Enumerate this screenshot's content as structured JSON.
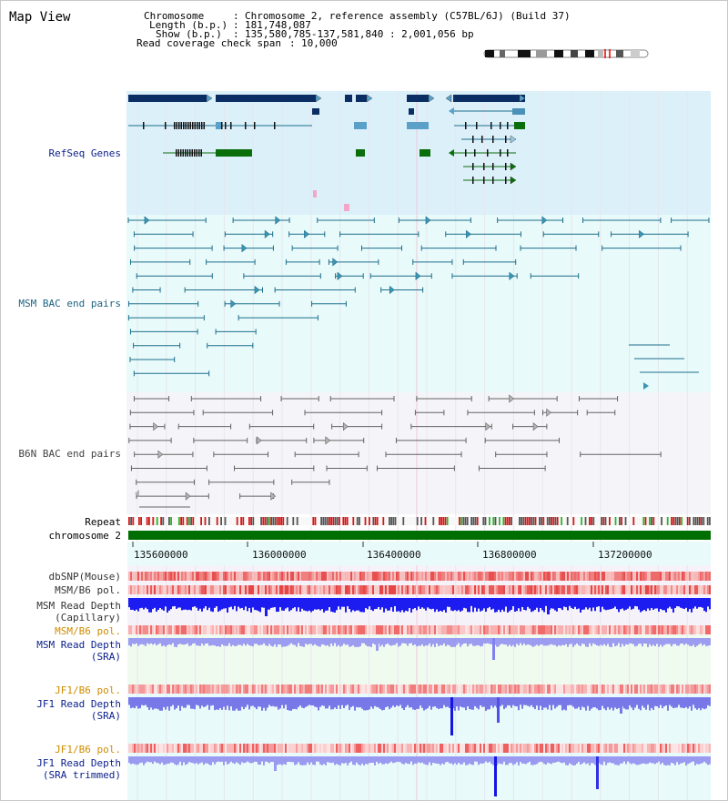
{
  "title": "Map View",
  "header": {
    "chromosome_label": "Chromosome",
    "chromosome_value": "Chromosome 2, reference assembly (C57BL/6J) (Build 37)",
    "length_label": "Length (b.p.)",
    "length_value": "181,748,087",
    "show_label": "Show (b.p.)",
    "show_value": "135,580,785-137,581,840 : 2,001,056 bp",
    "coverage_label": "Read coverage check span",
    "coverage_value": "10,000"
  },
  "tracks": {
    "refseq": "RefSeq Genes",
    "msm_bac": "MSM BAC end pairs",
    "b6n_bac": "B6N BAC end pairs",
    "repeat": "Repeat",
    "chromosome": "chromosome 2",
    "dbsnp": "dbSNP(Mouse)",
    "msm_b6_pol_1": "MSM/B6 pol.",
    "msm_read_depth_cap_1": "MSM Read Depth",
    "msm_read_depth_cap_2": "(Capillary)",
    "msm_b6_pol_2": "MSM/B6 pol.",
    "msm_read_depth_sra_1": "MSM Read Depth",
    "msm_read_depth_sra_2": "(SRA)",
    "jf1_b6_pol_1": "JF1/B6 pol.",
    "jf1_read_depth_1": "JF1 Read Depth",
    "jf1_read_depth_2": "(SRA)",
    "jf1_b6_pol_2": "JF1/B6 pol.",
    "jf1_read_depth_trim_1": "JF1 Read Depth",
    "jf1_read_depth_trim_2": "(SRA trimmed)"
  },
  "axis": {
    "ticks": [
      "135600000",
      "136000000",
      "136400000",
      "136800000",
      "137200000"
    ]
  },
  "colors": {
    "refseq_bg": "#d8f0fa",
    "msm_bg": "#e6fafa",
    "b6n_bg": "#f4f4f8",
    "gene_dark": "#0a2d64",
    "gene_green": "#0a6e0a",
    "msm_feature": "#1e6e8c",
    "b6n_feature": "#646464",
    "depth_blue": "#1414ff",
    "depth_light": "#8c8cf0",
    "pol_orange": "#d08c00",
    "label_blue": "#0a1e8c",
    "label_teal": "#1e6482"
  }
}
